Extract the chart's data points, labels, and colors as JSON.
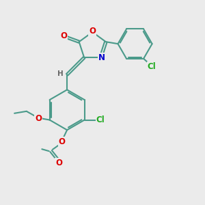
{
  "bg_color": "#ebebeb",
  "bond_color": "#4a9a8a",
  "bond_width": 1.5,
  "atom_colors": {
    "O": "#dd0000",
    "N": "#0000cc",
    "Cl": "#22aa22",
    "H": "#666666",
    "C": "#333333"
  },
  "font_size": 8.5,
  "fig_size": [
    3.0,
    3.0
  ],
  "dpi": 100
}
